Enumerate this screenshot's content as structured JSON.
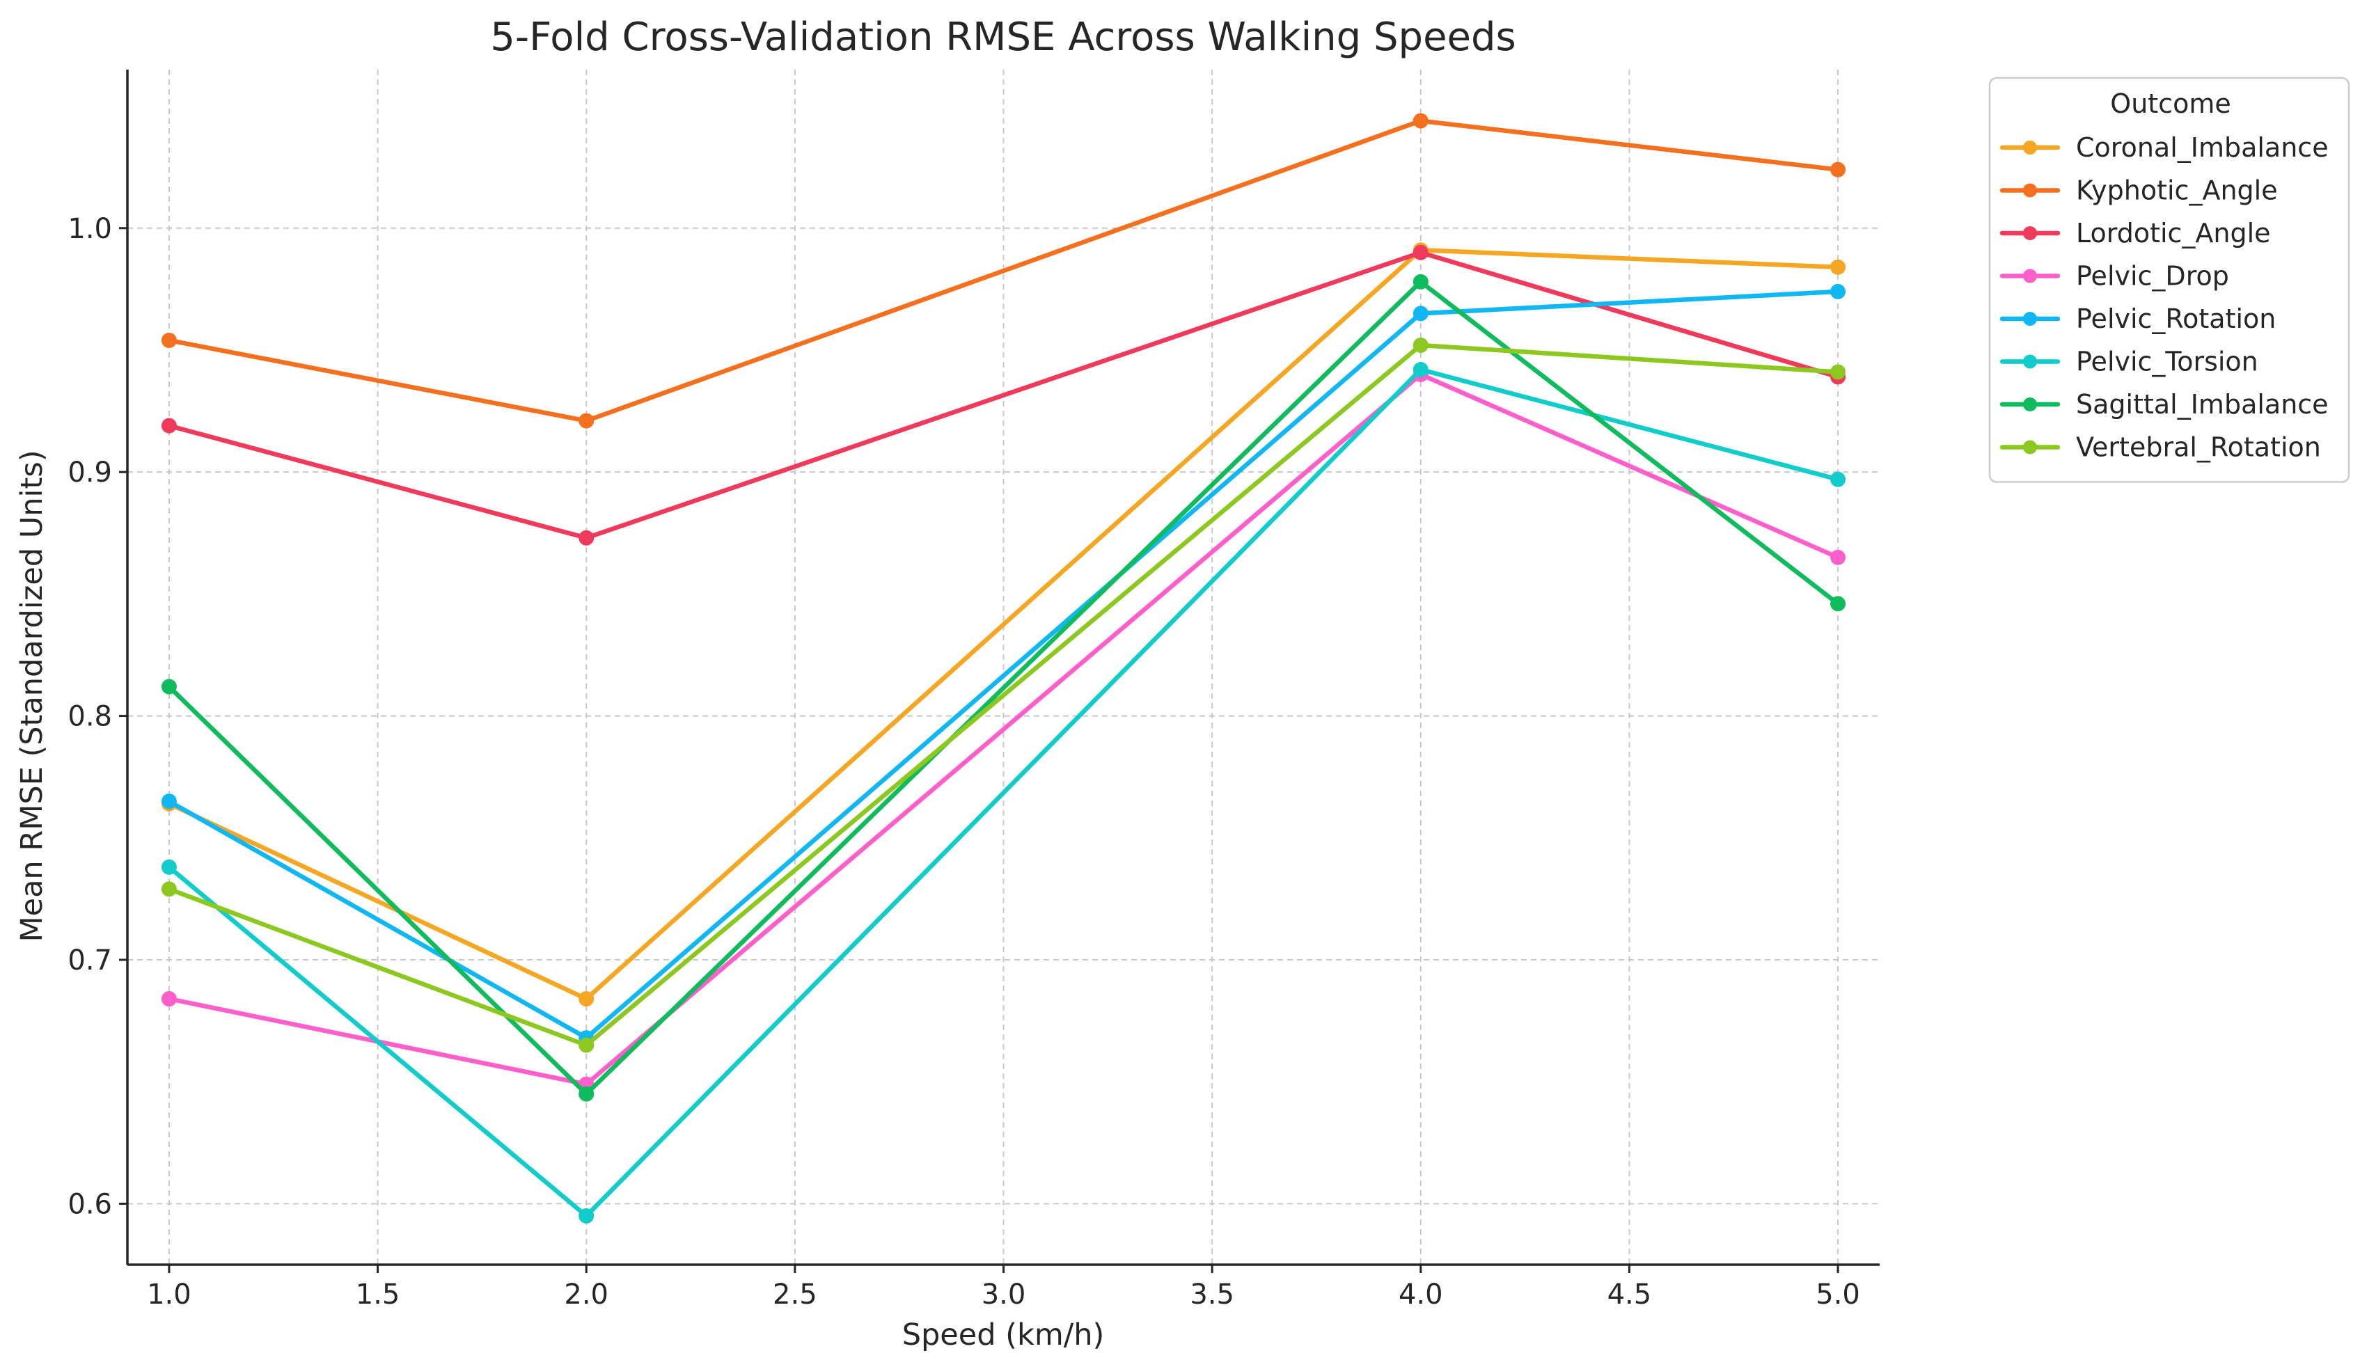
{
  "chart_data": {
    "type": "line",
    "title": "5-Fold Cross-Validation RMSE Across Walking Speeds",
    "xlabel": "Speed (km/h)",
    "ylabel": "Mean RMSE (Standardized Units)",
    "xlim": [
      0.9,
      5.1
    ],
    "ylim": [
      0.575,
      1.065
    ],
    "xticks": [
      1.0,
      1.5,
      2.0,
      2.5,
      3.0,
      3.5,
      4.0,
      4.5,
      5.0
    ],
    "xtick_labels": [
      "1.0",
      "1.5",
      "2.0",
      "2.5",
      "3.0",
      "3.5",
      "4.0",
      "4.5",
      "5.0"
    ],
    "yticks": [
      0.6,
      0.7,
      0.8,
      0.9,
      1.0
    ],
    "ytick_labels": [
      "0.6",
      "0.7",
      "0.8",
      "0.9",
      "1.0"
    ],
    "grid": true,
    "legend": {
      "title": "Outcome",
      "placement": "outside-top-right"
    },
    "x": [
      1.0,
      2.0,
      4.0,
      5.0
    ],
    "series": [
      {
        "name": "Coronal_Imbalance",
        "color": "#F5A623",
        "values": [
          0.764,
          0.684,
          0.991,
          0.984
        ]
      },
      {
        "name": "Kyphotic_Angle",
        "color": "#F4701F",
        "values": [
          0.954,
          0.921,
          1.044,
          1.024
        ]
      },
      {
        "name": "Lordotic_Angle",
        "color": "#F03A5C",
        "values": [
          0.919,
          0.873,
          0.99,
          0.939
        ]
      },
      {
        "name": "Pelvic_Drop",
        "color": "#FF5FCB",
        "values": [
          0.684,
          0.649,
          0.94,
          0.865
        ]
      },
      {
        "name": "Pelvic_Rotation",
        "color": "#11B7F2",
        "values": [
          0.765,
          0.668,
          0.965,
          0.974
        ]
      },
      {
        "name": "Pelvic_Torsion",
        "color": "#12CCCB",
        "values": [
          0.738,
          0.595,
          0.942,
          0.897
        ]
      },
      {
        "name": "Sagittal_Imbalance",
        "color": "#10BB5E",
        "values": [
          0.812,
          0.645,
          0.978,
          0.846
        ]
      },
      {
        "name": "Vertebral_Rotation",
        "color": "#8CC820",
        "values": [
          0.729,
          0.665,
          0.952,
          0.941
        ]
      }
    ]
  }
}
